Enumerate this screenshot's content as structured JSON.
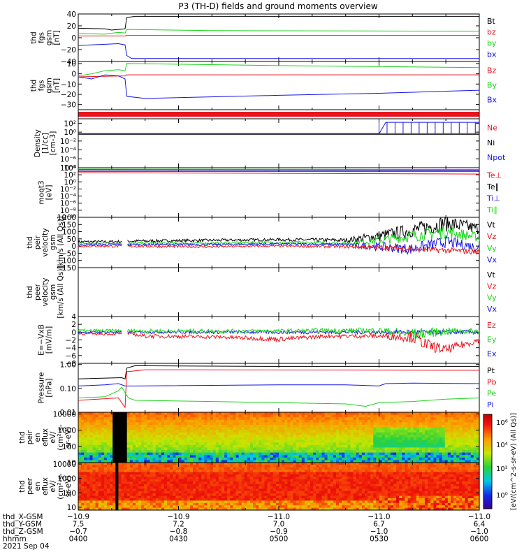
{
  "title": "P3 (TH-D) fields and ground moments overview",
  "colors": {
    "black": "#000000",
    "red": "#e8141e",
    "green": "#1ad41a",
    "blue": "#1414e6"
  },
  "panels": [
    {
      "id": "fgs-gsm",
      "ylabel": [
        "thd",
        "fgs",
        "gsm",
        "[nT]"
      ],
      "type": "line",
      "ylim": [
        -40,
        40
      ],
      "log": false,
      "ticks": [
        {
          "v": 40,
          "label": "40"
        },
        {
          "v": 20,
          "label": "20"
        },
        {
          "v": 0,
          "label": "0"
        },
        {
          "v": -20,
          "label": "−20"
        },
        {
          "v": -40,
          "label": "−40"
        }
      ],
      "legend": [
        {
          "name": "Bt",
          "color": "#000000"
        },
        {
          "name": "bz",
          "color": "#e8141e"
        },
        {
          "name": "by",
          "color": "#1ad41a"
        },
        {
          "name": "bx",
          "color": "#1414e6"
        }
      ],
      "series": [
        {
          "name": "Bt",
          "color": "#000000",
          "x": [
            0,
            8,
            10,
            12,
            14,
            14.5,
            17,
            20,
            120
          ],
          "y": [
            16,
            15,
            13,
            14,
            15,
            34,
            36,
            36,
            36
          ]
        },
        {
          "name": "bz",
          "color": "#e8141e",
          "x": [
            0,
            14,
            14.5,
            120
          ],
          "y": [
            3,
            3,
            4,
            4
          ]
        },
        {
          "name": "by",
          "color": "#1ad41a",
          "x": [
            0,
            8,
            12,
            14,
            14.5,
            40,
            120
          ],
          "y": [
            7,
            6,
            9,
            8,
            14,
            12,
            11
          ]
        },
        {
          "name": "bx",
          "color": "#1414e6",
          "x": [
            0,
            8,
            12,
            14,
            14.5,
            16,
            120
          ],
          "y": [
            -13,
            -11,
            -10,
            -12,
            -30,
            -35,
            -35
          ]
        }
      ]
    },
    {
      "id": "fgs-gse",
      "ylabel": [
        "thd",
        "fgs",
        "gsm",
        "[nT]"
      ],
      "type": "line",
      "ylim": [
        -35,
        12
      ],
      "log": false,
      "ticks": [
        {
          "v": 10,
          "label": "10"
        },
        {
          "v": 0,
          "label": "0"
        },
        {
          "v": -10,
          "label": "−10"
        },
        {
          "v": -20,
          "label": "−20"
        },
        {
          "v": -30,
          "label": "−30"
        }
      ],
      "legend": [
        {
          "name": "Bz",
          "color": "#e8141e"
        },
        {
          "name": "By",
          "color": "#1ad41a"
        },
        {
          "name": "Bx",
          "color": "#1414e6"
        }
      ],
      "series": [
        {
          "name": "Bz",
          "color": "#e8141e",
          "x": [
            0,
            14,
            14.5,
            120
          ],
          "y": [
            -3,
            -2,
            -1,
            -1
          ]
        },
        {
          "name": "By",
          "color": "#1ad41a",
          "x": [
            0,
            4,
            8,
            12,
            14,
            14.5,
            60,
            90,
            120
          ],
          "y": [
            -2,
            0,
            3,
            4,
            3,
            10,
            8,
            7,
            6
          ]
        },
        {
          "name": "Bx",
          "color": "#1414e6",
          "x": [
            0,
            4,
            8,
            12,
            14,
            14.5,
            20,
            60,
            90,
            120
          ],
          "y": [
            -3,
            -5,
            -1,
            -2,
            -5,
            -22,
            -24,
            -21,
            -19,
            -16
          ]
        }
      ]
    },
    {
      "id": "density",
      "ylabel": [
        "Density",
        "[1/cc]",
        "[cm-3]"
      ],
      "type": "line",
      "ylim": [
        -8,
        3
      ],
      "log": true,
      "ticks": [
        {
          "v": 2,
          "label": "10²"
        },
        {
          "v": 0,
          "label": "10⁰"
        },
        {
          "v": -2,
          "label": "10⁻²"
        },
        {
          "v": -4,
          "label": "10⁻⁴"
        },
        {
          "v": -6,
          "label": "10⁻⁶"
        },
        {
          "v": -8,
          "label": "10⁻⁸"
        }
      ],
      "legend": [
        {
          "name": "Ne",
          "color": "#e8141e"
        },
        {
          "name": "Ni",
          "color": "#000000"
        },
        {
          "name": "Npot",
          "color": "#1414e6"
        }
      ],
      "series": [
        {
          "name": "Ne",
          "color": "#e8141e",
          "x": [
            0,
            120
          ],
          "y": [
            -0.3,
            -0.3
          ]
        },
        {
          "name": "Ni",
          "color": "#000000",
          "x": [
            0,
            120
          ],
          "y": [
            -0.5,
            -0.5
          ]
        },
        {
          "name": "Npot",
          "color": "#1414e6",
          "x": [
            0,
            90,
            92,
            120
          ],
          "y": [
            -0.4,
            -0.4,
            2.2,
            2.2
          ]
        }
      ]
    },
    {
      "id": "moms-temp",
      "ylabel": [
        "moqt3",
        "[eV]"
      ],
      "type": "line",
      "ylim": [
        -10,
        4
      ],
      "log": true,
      "ticks": [
        {
          "v": 4,
          "label": "10⁴"
        },
        {
          "v": 2,
          "label": "10²"
        },
        {
          "v": 0,
          "label": "10⁰"
        },
        {
          "v": -2,
          "label": "10⁻²"
        },
        {
          "v": -4,
          "label": "10⁻⁴"
        },
        {
          "v": -6,
          "label": "10⁻⁶"
        },
        {
          "v": -8,
          "label": "10⁻⁸"
        },
        {
          "v": -10,
          "label": "10⁻¹⁰"
        }
      ],
      "legend": [
        {
          "name": "Te⊥",
          "color": "#e8141e"
        },
        {
          "name": "Te∥",
          "color": "#000000"
        },
        {
          "name": "Ti⊥",
          "color": "#1414e6"
        },
        {
          "name": "Ti∥",
          "color": "#1ad41a"
        }
      ],
      "series": [
        {
          "name": "Ti∥",
          "color": "#1ad41a",
          "x": [
            0,
            120
          ],
          "y": [
            3.6,
            3.5
          ]
        },
        {
          "name": "Ti⊥",
          "color": "#1414e6",
          "x": [
            0,
            120
          ],
          "y": [
            3.4,
            3.3
          ]
        },
        {
          "name": "Te∥",
          "color": "#000000",
          "x": [
            0,
            120
          ],
          "y": [
            3.0,
            3.0
          ]
        },
        {
          "name": "Te⊥",
          "color": "#e8141e",
          "x": [
            0,
            60,
            120
          ],
          "y": [
            2.6,
            2.4,
            2.2
          ]
        }
      ]
    },
    {
      "id": "peir-velocity",
      "ylabel": [
        "thd",
        "peir",
        "velocity",
        "gsm",
        "[km/s (All Qs)]"
      ],
      "type": "noisy",
      "ylim": [
        -150,
        200
      ],
      "log": false,
      "ticks": [
        {
          "v": 200,
          "label": "200"
        },
        {
          "v": 150,
          "label": "150"
        },
        {
          "v": 100,
          "label": "100"
        },
        {
          "v": 50,
          "label": "50"
        },
        {
          "v": 0,
          "label": "0"
        },
        {
          "v": -50,
          "label": "−50"
        },
        {
          "v": -100,
          "label": "−100"
        },
        {
          "v": -150,
          "label": "−150"
        }
      ],
      "legend": [
        {
          "name": "Vt",
          "color": "#000000"
        },
        {
          "name": "Vz",
          "color": "#e8141e"
        },
        {
          "name": "Vy",
          "color": "#1ad41a"
        },
        {
          "name": "Vx",
          "color": "#1414e6"
        }
      ],
      "series": [
        {
          "name": "Vt",
          "color": "#000000",
          "x": [
            0,
            10,
            18,
            40,
            60,
            80,
            90,
            100,
            110,
            120
          ],
          "y": [
            30,
            30,
            35,
            40,
            45,
            40,
            70,
            110,
            160,
            120
          ],
          "amp": [
            10,
            10,
            10,
            10,
            10,
            15,
            40,
            50,
            60,
            40
          ]
        },
        {
          "name": "Vy",
          "color": "#1ad41a",
          "x": [
            0,
            40,
            60,
            80,
            90,
            100,
            110,
            120
          ],
          "y": [
            18,
            20,
            25,
            20,
            40,
            70,
            100,
            60
          ],
          "amp": [
            8,
            8,
            10,
            10,
            30,
            40,
            50,
            30
          ]
        },
        {
          "name": "Vx",
          "color": "#1414e6",
          "x": [
            0,
            40,
            60,
            80,
            90,
            100,
            110,
            120
          ],
          "y": [
            10,
            10,
            15,
            10,
            -5,
            -20,
            30,
            -10
          ],
          "amp": [
            8,
            8,
            8,
            10,
            30,
            40,
            40,
            30
          ]
        },
        {
          "name": "Vz",
          "color": "#e8141e",
          "x": [
            0,
            40,
            60,
            80,
            90,
            100,
            110,
            120
          ],
          "y": [
            0,
            -5,
            0,
            -5,
            -10,
            -20,
            -30,
            -40
          ],
          "amp": [
            8,
            8,
            8,
            10,
            20,
            20,
            20,
            20
          ]
        }
      ]
    },
    {
      "id": "peer-velocity",
      "ylabel": [
        "thd",
        "peer",
        "velocity",
        "gsm",
        "[km/s (All Qs)]"
      ],
      "type": "empty",
      "ylim": [
        0,
        1
      ],
      "log": false,
      "ticks": [],
      "legend": [
        {
          "name": "Vt",
          "color": "#000000"
        },
        {
          "name": "Vz",
          "color": "#e8141e"
        },
        {
          "name": "Vy",
          "color": "#1ad41a"
        },
        {
          "name": "Vx",
          "color": "#1414e6"
        }
      ],
      "series": []
    },
    {
      "id": "exb",
      "ylabel": [
        "E=−VxB",
        "[mV/m]"
      ],
      "type": "noisy",
      "ylim": [
        -8,
        4
      ],
      "log": false,
      "ticks": [
        {
          "v": 4,
          "label": "4"
        },
        {
          "v": 2,
          "label": "2"
        },
        {
          "v": 0,
          "label": "0"
        },
        {
          "v": -2,
          "label": "−2"
        },
        {
          "v": -4,
          "label": "−4"
        },
        {
          "v": -6,
          "label": "−6"
        },
        {
          "v": -8,
          "label": "−8"
        }
      ],
      "legend": [
        {
          "name": "Ez",
          "color": "#e8141e"
        },
        {
          "name": "Ey",
          "color": "#1ad41a"
        },
        {
          "name": "Ex",
          "color": "#1414e6"
        }
      ],
      "series": [
        {
          "name": "Ex",
          "color": "#1414e6",
          "x": [
            0,
            120
          ],
          "y": [
            0,
            0
          ],
          "amp": [
            0.3,
            0.6
          ]
        },
        {
          "name": "Ey",
          "color": "#1ad41a",
          "x": [
            0,
            40,
            60,
            90,
            100,
            110,
            120
          ],
          "y": [
            0.3,
            0.3,
            0.3,
            0.5,
            -0.5,
            0.2,
            0.3
          ],
          "amp": [
            0.5,
            0.5,
            0.5,
            0.7,
            1.5,
            1.0,
            0.6
          ]
        },
        {
          "name": "Ez",
          "color": "#e8141e",
          "x": [
            0,
            10,
            14,
            20,
            40,
            60,
            75,
            90,
            100,
            105,
            110,
            120
          ],
          "y": [
            -0.4,
            -0.5,
            -0.3,
            -1.0,
            -1.2,
            -1.8,
            -1.0,
            -1.0,
            -1.2,
            -3.5,
            -4.5,
            -2.0
          ],
          "amp": [
            0.3,
            0.3,
            0.3,
            0.5,
            0.5,
            0.6,
            0.5,
            0.6,
            1.5,
            1.5,
            1.2,
            0.8
          ]
        }
      ]
    },
    {
      "id": "pressure",
      "ylabel": [
        "Pressure",
        "[nPa]"
      ],
      "type": "line",
      "ylim": [
        -2,
        0.05
      ],
      "log": true,
      "ticks": [
        {
          "v": 0,
          "label": "1.00"
        },
        {
          "v": -1,
          "label": "0.10"
        },
        {
          "v": -2,
          "label": "0.01"
        }
      ],
      "legend": [
        {
          "name": "Pt",
          "color": "#000000"
        },
        {
          "name": "Pb",
          "color": "#e8141e"
        },
        {
          "name": "Pe",
          "color": "#1ad41a"
        },
        {
          "name": "Pi",
          "color": "#1414e6"
        }
      ],
      "series": [
        {
          "name": "Pt",
          "color": "#000000",
          "x": [
            0,
            13,
            14,
            14.5,
            17,
            60,
            120
          ],
          "y": [
            -0.6,
            -0.55,
            -0.6,
            -0.15,
            -0.05,
            -0.08,
            -0.08
          ]
        },
        {
          "name": "Pb",
          "color": "#e8141e",
          "x": [
            0,
            12,
            14,
            14.5,
            20,
            120
          ],
          "y": [
            -1.5,
            -1.4,
            -1.8,
            -0.3,
            -0.22,
            -0.24
          ]
        },
        {
          "name": "Pi",
          "color": "#1414e6",
          "x": [
            0,
            8,
            12,
            14,
            17,
            60,
            80,
            90,
            92,
            100,
            120
          ],
          "y": [
            -0.9,
            -0.85,
            -0.8,
            -0.9,
            -0.9,
            -0.85,
            -0.85,
            -0.9,
            -0.8,
            -0.78,
            -0.8
          ]
        },
        {
          "name": "Pe",
          "color": "#1ad41a",
          "x": [
            0,
            8,
            12,
            13,
            15,
            17,
            40,
            60,
            80,
            86,
            90,
            100,
            110,
            120
          ],
          "y": [
            -1.4,
            -1.35,
            -1.1,
            -0.95,
            -1.4,
            -1.5,
            -1.55,
            -1.6,
            -1.65,
            -1.75,
            -1.6,
            -1.55,
            -1.45,
            -1.4
          ]
        }
      ]
    },
    {
      "id": "peir-eflux",
      "ylabel": [
        "thd",
        "peir",
        "en",
        "eflux",
        "eV/",
        "(cm²-s-",
        "sr-eV)"
      ],
      "type": "spectrogram",
      "ylim": [
        1,
        4.1
      ],
      "log": true,
      "ticks": [
        {
          "v": 4,
          "label": "10000"
        },
        {
          "v": 3,
          "label": "1000"
        },
        {
          "v": 2,
          "label": "100"
        },
        {
          "v": 1,
          "label": "10"
        }
      ],
      "gap": [
        10.5,
        14.5
      ],
      "legend": [],
      "series": []
    },
    {
      "id": "peer-eflux",
      "ylabel": [
        "thd",
        "peer",
        "en",
        "eflux",
        "eV/",
        "(cm²-s-",
        "sr-eV)"
      ],
      "type": "spectrogram2",
      "ylim": [
        0.8,
        4.1
      ],
      "log": true,
      "ticks": [
        {
          "v": 4,
          "label": "10000"
        },
        {
          "v": 3,
          "label": "1000"
        },
        {
          "v": 2,
          "label": "100"
        },
        {
          "v": 1,
          "label": "10"
        }
      ],
      "gap": [
        11.0,
        12.0
      ],
      "legend": [],
      "series": []
    }
  ],
  "colorbar": {
    "label": "[eV/(cm^2-s-sr-eV) (All Qs)]",
    "ticks": [
      {
        "label": "10⁶"
      },
      {
        "label": "10⁴"
      },
      {
        "label": "10²"
      },
      {
        "label": "10⁰"
      }
    ]
  },
  "xaxis": {
    "x_range_minutes": [
      0,
      120
    ],
    "rows": [
      {
        "label": "thd_X-GSM",
        "values": [
          "−10.9",
          "−10.9",
          "−11.0",
          "−11.0",
          "−11.0"
        ]
      },
      {
        "label": "thd_Y-GSM",
        "values": [
          "7.5",
          "7.2",
          "7.0",
          "6.7",
          "6.4"
        ]
      },
      {
        "label": "thd_Z-GSM",
        "values": [
          "−0.7",
          "−0.8",
          "−0.9",
          "−1.0",
          "−1.0"
        ]
      },
      {
        "label": "hhmm",
        "values": [
          "0400",
          "0430",
          "0500",
          "0530",
          "0600"
        ]
      }
    ],
    "date": "2021 Sep 04"
  }
}
